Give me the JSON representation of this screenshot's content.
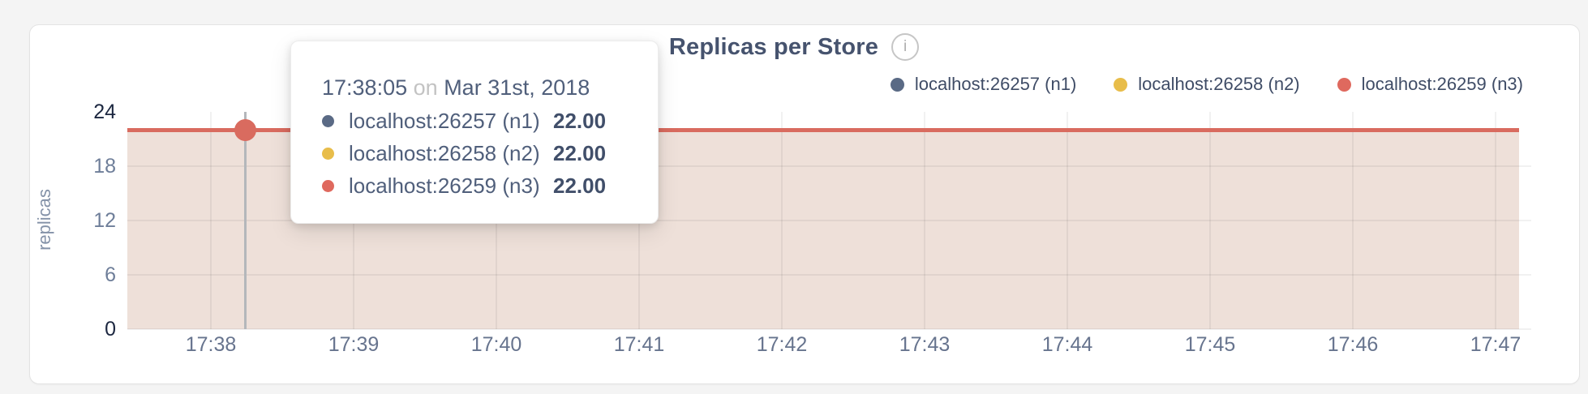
{
  "card": {
    "title": "Replicas per Store",
    "info_icon": "i"
  },
  "legend": {
    "position": "top-right",
    "items": [
      {
        "label": "localhost:26257 (n1)",
        "color": "#5a6a85"
      },
      {
        "label": "localhost:26258 (n2)",
        "color": "#e8bd4a"
      },
      {
        "label": "localhost:26259 (n3)",
        "color": "#df695e"
      }
    ]
  },
  "tooltip": {
    "time": "17:38:05",
    "connector": "on",
    "date": "Mar 31st, 2018",
    "rows": [
      {
        "label": "localhost:26257 (n1)",
        "value": "22.00",
        "color": "#5a6a85"
      },
      {
        "label": "localhost:26258 (n2)",
        "value": "22.00",
        "color": "#e8bd4a"
      },
      {
        "label": "localhost:26259 (n3)",
        "value": "22.00",
        "color": "#df695e"
      }
    ]
  },
  "chart_data": {
    "type": "area",
    "title": "Replicas per Store",
    "xlabel": "",
    "ylabel": "replicas",
    "ylim": [
      0,
      24
    ],
    "y_ticks": [
      0,
      6,
      12,
      18,
      24
    ],
    "x_ticks": [
      "17:38",
      "17:39",
      "17:40",
      "17:41",
      "17:42",
      "17:43",
      "17:44",
      "17:45",
      "17:46",
      "17:47"
    ],
    "grid": true,
    "legend_position": "top-right",
    "series": [
      {
        "name": "localhost:26257 (n1)",
        "color": "#5a6a85",
        "value": 22
      },
      {
        "name": "localhost:26258 (n2)",
        "color": "#e8bd4a",
        "value": 22
      },
      {
        "name": "localhost:26259 (n3)",
        "color": "#df695e",
        "value": 22
      }
    ],
    "highlight": {
      "time": "17:38:05",
      "value": 22
    },
    "area_fill_color": "#eee0d9",
    "top_line_color": "#d96b5f"
  }
}
